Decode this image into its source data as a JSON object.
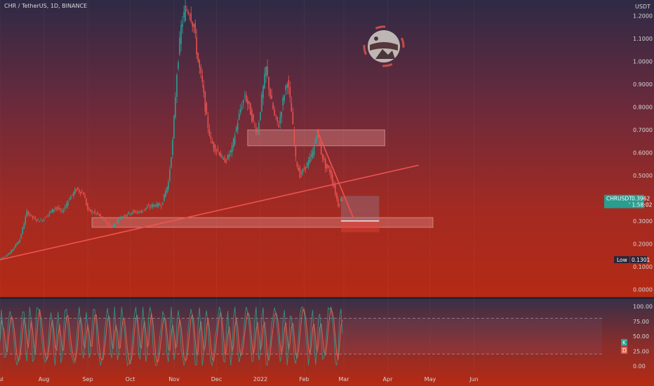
{
  "chart_data": {
    "type": "line",
    "title": "CHR / TetherUS, 1D, BINANCE",
    "currency": "USDT",
    "price_axis": {
      "range": [
        -0.03,
        1.27
      ],
      "ticks": [
        {
          "v": 1.2,
          "label": "1.2000"
        },
        {
          "v": 1.1,
          "label": "1.1000"
        },
        {
          "v": 1.0,
          "label": "1.0000"
        },
        {
          "v": 0.9,
          "label": "0.9000"
        },
        {
          "v": 0.8,
          "label": "0.8000"
        },
        {
          "v": 0.7,
          "label": "0.7000"
        },
        {
          "v": 0.6,
          "label": "0.6000"
        },
        {
          "v": 0.5,
          "label": "0.5000"
        },
        {
          "v": 0.3,
          "label": "0.3000"
        },
        {
          "v": 0.2,
          "label": "0.2000"
        },
        {
          "v": 0.1,
          "label": "0.1000"
        },
        {
          "v": 0.0,
          "label": "0.0000"
        }
      ]
    },
    "time_axis": {
      "range": [
        0,
        300
      ],
      "ticks": [
        {
          "d": 0,
          "label": "Jul"
        },
        {
          "d": 31,
          "label": "Aug"
        },
        {
          "d": 62,
          "label": "Sep"
        },
        {
          "d": 92,
          "label": "Oct"
        },
        {
          "d": 123,
          "label": "Nov"
        },
        {
          "d": 153,
          "label": "Dec"
        },
        {
          "d": 184,
          "label": "2022"
        },
        {
          "d": 215,
          "label": "Feb"
        },
        {
          "d": 243,
          "label": "Mar"
        },
        {
          "d": 274,
          "label": "Apr"
        },
        {
          "d": 304,
          "label": "May"
        },
        {
          "d": 335,
          "label": "Jun"
        }
      ]
    },
    "series": [
      {
        "x": [
          0,
          8,
          15,
          20,
          25,
          30,
          35,
          40,
          45,
          50,
          55,
          60,
          63,
          66,
          70,
          75,
          80,
          85,
          90,
          95,
          100,
          105,
          110,
          115,
          120,
          123,
          126,
          129,
          132,
          135,
          138,
          141,
          144,
          147,
          150,
          153,
          156,
          159,
          162,
          165,
          168,
          171,
          174,
          177,
          180,
          183,
          186,
          189,
          192,
          195,
          198,
          201,
          204,
          207,
          210,
          213,
          216,
          219,
          222,
          225,
          228,
          231,
          234,
          237,
          240,
          242
        ],
        "values": [
          0.13,
          0.16,
          0.22,
          0.34,
          0.31,
          0.3,
          0.33,
          0.36,
          0.34,
          0.4,
          0.44,
          0.42,
          0.35,
          0.34,
          0.33,
          0.3,
          0.27,
          0.31,
          0.33,
          0.34,
          0.34,
          0.36,
          0.37,
          0.37,
          0.47,
          0.65,
          0.95,
          1.15,
          1.23,
          1.22,
          1.15,
          1.0,
          0.9,
          0.75,
          0.65,
          0.62,
          0.6,
          0.56,
          0.58,
          0.62,
          0.71,
          0.79,
          0.85,
          0.8,
          0.73,
          0.69,
          0.84,
          0.97,
          0.85,
          0.76,
          0.72,
          0.83,
          0.92,
          0.78,
          0.57,
          0.5,
          0.53,
          0.56,
          0.6,
          0.69,
          0.6,
          0.54,
          0.52,
          0.45,
          0.37,
          0.396
        ]
      }
    ],
    "trendlines": [
      {
        "d1": 0,
        "v1": 0.13,
        "d2": 296,
        "v2": 0.545
      },
      {
        "d1": 224,
        "v1": 0.7,
        "d2": 250,
        "v2": 0.31
      }
    ],
    "zones": [
      {
        "d1": 175,
        "d2": 272,
        "v_top": 0.7,
        "v_bottom": 0.63
      },
      {
        "d1": 65,
        "d2": 306,
        "v_top": 0.315,
        "v_bottom": 0.272
      }
    ],
    "position_box": {
      "d1": 241,
      "d2": 268,
      "entry": 0.3,
      "target": 0.41,
      "stop": 0.25
    },
    "last_price": {
      "label": "CHRUSDT",
      "value": "0.3962",
      "countdown": "' 1:58:02",
      "v": 0.3962
    },
    "low_marker": {
      "label": "Low",
      "value": "0.1301",
      "v": 0.1301
    },
    "oscillator": {
      "range": [
        -10,
        110
      ],
      "ticks": [
        {
          "v": 100,
          "label": "100.00"
        },
        {
          "v": 75,
          "label": "75.00"
        },
        {
          "v": 50,
          "label": "50.00"
        },
        {
          "v": 25,
          "label": "25.00"
        },
        {
          "v": 0,
          "label": "0.00"
        }
      ],
      "overbought": 80,
      "oversold": 20,
      "k_label": "K",
      "d_label": "D",
      "k_color": "#2a9d8f",
      "d_color": "#e0624f"
    },
    "colors": {
      "bull": "#26a69a",
      "bear": "#ef5350",
      "trend": "#ef5350",
      "zone": "#e89c97"
    }
  }
}
